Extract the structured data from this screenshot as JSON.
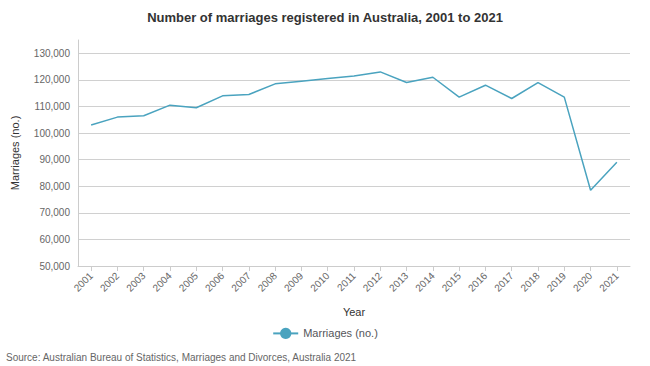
{
  "chart_data": {
    "type": "line",
    "title": "Number of marriages registered in Australia, 2001 to 2021",
    "xlabel": "Year",
    "ylabel": "Marriages (no.)",
    "source": "Source: Australian Bureau of Statistics, Marriages and Divorces, Australia 2021",
    "x": [
      2001,
      2002,
      2003,
      2004,
      2005,
      2006,
      2007,
      2008,
      2009,
      2010,
      2011,
      2012,
      2013,
      2014,
      2015,
      2016,
      2017,
      2018,
      2019,
      2020,
      2021
    ],
    "series": [
      {
        "name": "Marriages (no.)",
        "color": "#4aa3bf",
        "values": [
          103000,
          106000,
          106500,
          110500,
          109500,
          114000,
          114500,
          118500,
          119500,
          120500,
          121500,
          123000,
          119000,
          121000,
          113500,
          118000,
          113000,
          119000,
          113500,
          78500,
          89000
        ]
      }
    ],
    "xlim": [
      2000.5,
      2021.5
    ],
    "xticks": [
      2001,
      2002,
      2003,
      2004,
      2005,
      2006,
      2007,
      2008,
      2009,
      2010,
      2011,
      2012,
      2013,
      2014,
      2015,
      2016,
      2017,
      2018,
      2019,
      2020,
      2021
    ],
    "ylim": [
      50000,
      135000
    ],
    "yticks": [
      {
        "value": 50000,
        "label": "50,000"
      },
      {
        "value": 60000,
        "label": "60,000"
      },
      {
        "value": 70000,
        "label": "70,000"
      },
      {
        "value": 80000,
        "label": "80,000"
      },
      {
        "value": 90000,
        "label": "90,000"
      },
      {
        "value": 100000,
        "label": "100,000"
      },
      {
        "value": 110000,
        "label": "110,000"
      },
      {
        "value": 120000,
        "label": "120,000"
      },
      {
        "value": 130000,
        "label": "130,000"
      }
    ],
    "grid": true,
    "legend": "bottom"
  }
}
